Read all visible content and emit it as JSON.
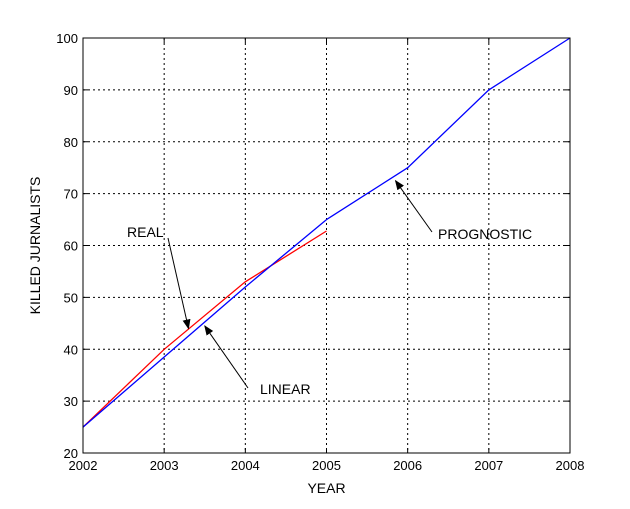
{
  "chart_data": {
    "type": "line",
    "xlabel": "YEAR",
    "ylabel": "KILLED JURNALISTS",
    "xlim": [
      2002,
      2008
    ],
    "ylim": [
      20,
      100
    ],
    "xticks": [
      2002,
      2003,
      2004,
      2005,
      2006,
      2007,
      2008
    ],
    "yticks": [
      20,
      30,
      40,
      50,
      60,
      70,
      80,
      90,
      100
    ],
    "grid": true,
    "series": [
      {
        "name": "REAL",
        "color": "#ff0000",
        "x": [
          2002,
          2003,
          2004,
          2005
        ],
        "y": [
          25,
          40,
          53,
          62.8
        ]
      },
      {
        "name": "LINEAR",
        "color": "#0000ff",
        "x": [
          2002,
          2003,
          2004,
          2005
        ],
        "y": [
          25,
          38.5,
          52,
          65
        ]
      },
      {
        "name": "PROGNOSTIC",
        "color": "#0000ff",
        "x": [
          2005,
          2006,
          2007,
          2008
        ],
        "y": [
          65,
          75,
          90,
          100
        ]
      }
    ],
    "annotations": [
      {
        "text": "REAL",
        "target": [
          2003.3,
          44
        ]
      },
      {
        "text": "LINEAR",
        "target": [
          2003.5,
          44.5
        ]
      },
      {
        "text": "PROGNOSTIC",
        "target": [
          2005.85,
          72.5
        ]
      }
    ]
  }
}
